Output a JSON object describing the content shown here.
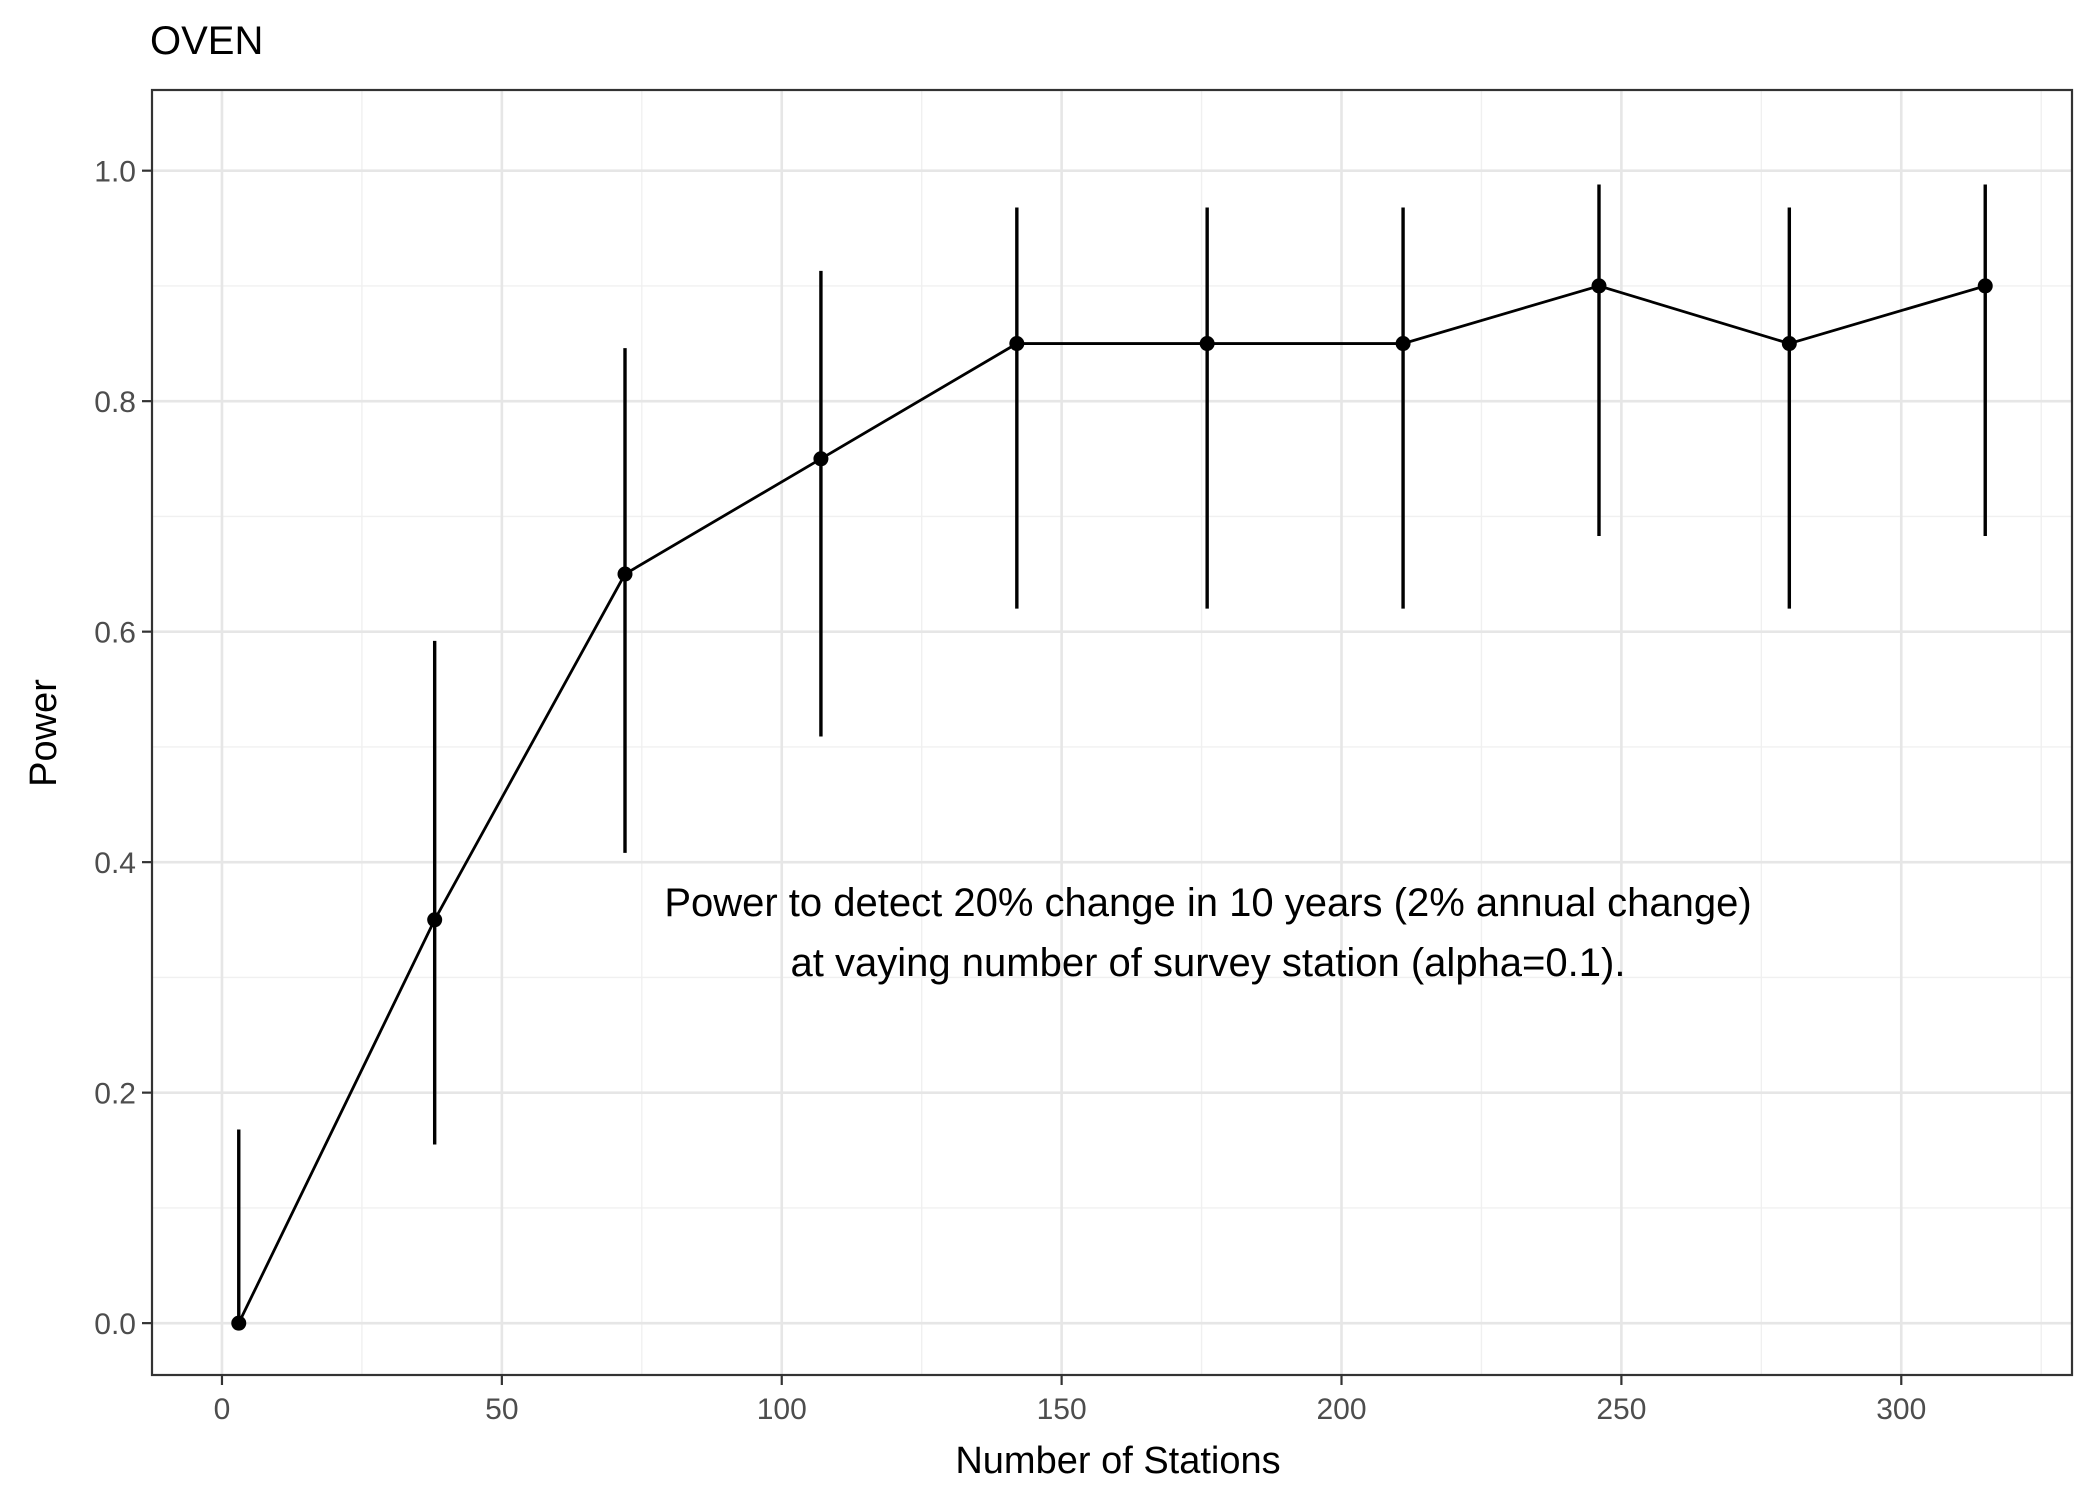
{
  "chart_data": {
    "type": "line",
    "title": "OVEN",
    "xlabel": "Number of Stations",
    "ylabel": "Power",
    "xlim": [
      -12.5,
      330.5
    ],
    "ylim": [
      -0.045,
      1.07
    ],
    "x_ticks": [
      0,
      50,
      100,
      150,
      200,
      250,
      300
    ],
    "x_tick_labels": [
      "0",
      "50",
      "100",
      "150",
      "200",
      "250",
      "300"
    ],
    "y_ticks": [
      0.0,
      0.2,
      0.4,
      0.6,
      0.8,
      1.0
    ],
    "y_tick_labels": [
      "0.0",
      "0.2",
      "0.4",
      "0.6",
      "0.8",
      "1.0"
    ],
    "grid": true,
    "series": [
      {
        "x": [
          3,
          38,
          72,
          107,
          142,
          176,
          211,
          246,
          280,
          315
        ],
        "y": [
          0.0,
          0.35,
          0.65,
          0.75,
          0.85,
          0.85,
          0.85,
          0.9,
          0.85,
          0.9
        ],
        "lower": [
          0.0,
          0.155,
          0.408,
          0.509,
          0.62,
          0.62,
          0.62,
          0.683,
          0.62,
          0.683
        ],
        "upper": [
          0.168,
          0.592,
          0.846,
          0.913,
          0.968,
          0.968,
          0.968,
          0.988,
          0.968,
          0.988
        ]
      }
    ],
    "annotation": [
      "Power to detect 20% change in 10 years (2% annual change)",
      "at vaying number of survey station (alpha=0.1)."
    ]
  }
}
